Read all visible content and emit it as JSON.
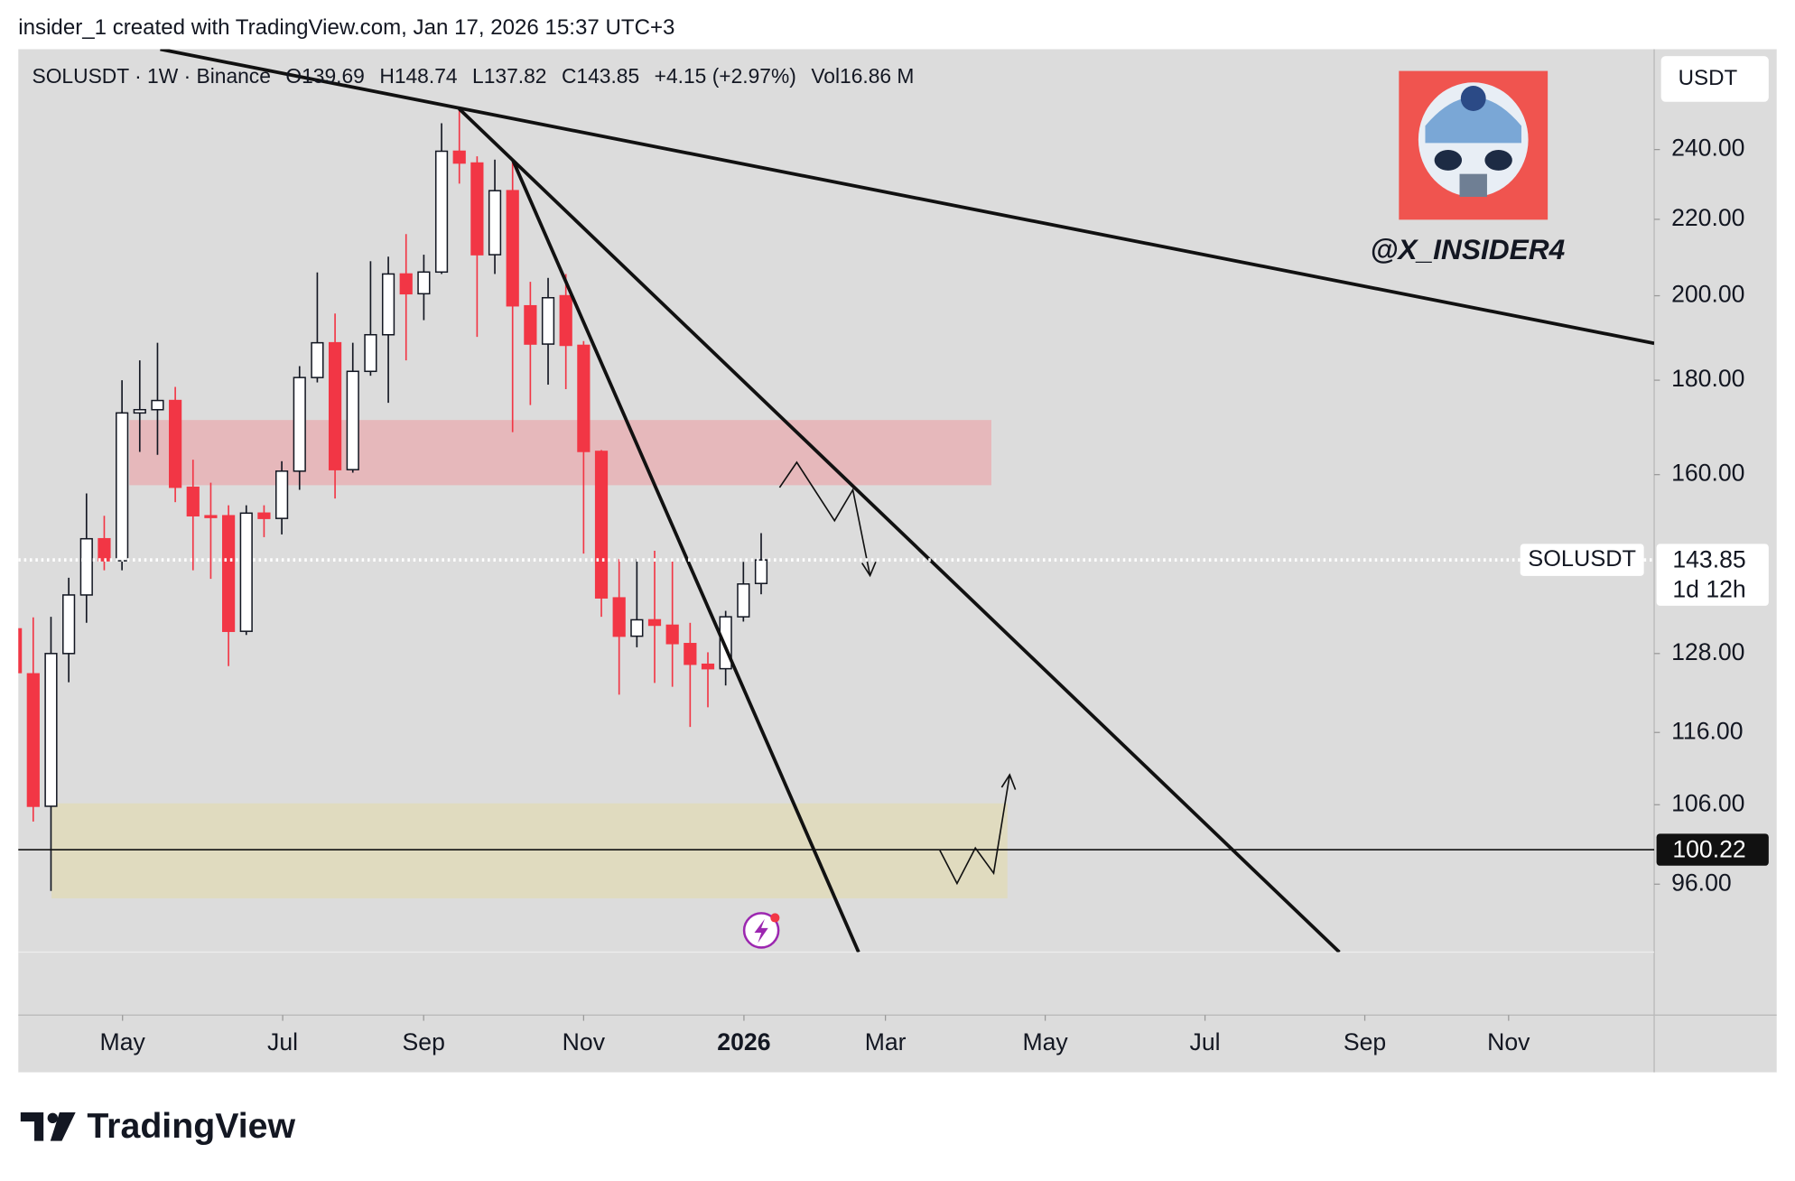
{
  "caption": "insider_1 created with TradingView.com, Jan 17, 2026 15:37 UTC+3",
  "chart_data": {
    "type": "candlestick",
    "title": "SOLUSDT · 1W · Binance",
    "header": {
      "open": "O139.69",
      "high": "H148.74",
      "low": "L137.82",
      "close": "C143.85",
      "change": "+4.15 (+2.97%)",
      "volume": "Vol16.86 M"
    },
    "y_axis_label": "USDT",
    "log_scale": true,
    "up_color": "#ffffff",
    "down_color": "#f23645",
    "open": [
      132,
      124.8,
      105.8,
      128,
      137.7,
      147.7,
      143.7,
      172.8,
      173.5,
      175.5,
      157.5,
      152,
      152,
      131.6,
      152.5,
      151.5,
      160.7,
      180.6,
      188.6,
      161,
      182,
      190.5,
      205.5,
      200.5,
      206,
      239.5,
      236,
      210.5,
      228,
      197.5,
      188.3,
      200,
      188,
      164.7,
      137.2,
      130.8,
      133.5,
      132.6,
      129.6,
      126.3,
      125.6,
      134,
      139.69
    ],
    "high": [
      135,
      133.9,
      134,
      140.7,
      156.3,
      152,
      180,
      184.5,
      188.6,
      178.5,
      163,
      158.4,
      154,
      154,
      154,
      162.7,
      183.2,
      205.9,
      195.6,
      188.6,
      208.8,
      210,
      216,
      210.5,
      248,
      252.8,
      238,
      237,
      237,
      203.5,
      204.5,
      205.5,
      189,
      165,
      144,
      144,
      145.5,
      144,
      133,
      128.2,
      135,
      143.5,
      148.74
    ],
    "low": [
      124,
      103.8,
      95.2,
      123.5,
      133,
      142,
      142,
      164.6,
      164,
      154.6,
      142,
      140.5,
      126,
      131,
      148,
      148.5,
      157,
      179.5,
      155.3,
      160.4,
      181,
      175,
      184.5,
      194,
      205.5,
      230,
      190,
      205.5,
      168.7,
      174.5,
      179,
      178,
      145,
      134,
      121.6,
      129,
      123.4,
      122.8,
      116.8,
      119.7,
      123,
      133.2,
      137.82
    ],
    "close": [
      125,
      105.8,
      128,
      137.7,
      147.7,
      143.7,
      172.8,
      173.5,
      175.5,
      157.5,
      152,
      151.8,
      131.6,
      152.5,
      151.5,
      160.7,
      180.6,
      188.6,
      161,
      182,
      190.5,
      205.5,
      200.5,
      206,
      239.5,
      236,
      210.5,
      228,
      197.5,
      188.3,
      199.5,
      188,
      164.7,
      137.2,
      130.8,
      133.5,
      132.6,
      129.6,
      126.3,
      125.6,
      134,
      139.6,
      143.85
    ],
    "xlim": [
      0.16,
      92.3
    ],
    "xticks": [
      {
        "value": 6.03,
        "label": "May"
      },
      {
        "value": 15.05,
        "label": "Jul"
      },
      {
        "value": 22.99,
        "label": "Sep"
      },
      {
        "value": 32.0,
        "label": "Nov"
      },
      {
        "value": 41.03,
        "label": "2026"
      },
      {
        "value": 49.0,
        "label": "Mar"
      },
      {
        "value": 58.0,
        "label": "May"
      },
      {
        "value": 67.0,
        "label": "Jul"
      },
      {
        "value": 76.0,
        "label": "Sep"
      },
      {
        "value": 84.1,
        "label": "Nov"
      }
    ],
    "ylim": [
      88.2,
      272
    ],
    "yticks": [
      {
        "value": 240,
        "label": "240.00"
      },
      {
        "value": 220,
        "label": "220.00"
      },
      {
        "value": 200,
        "label": "200.00"
      },
      {
        "value": 180,
        "label": "180.00"
      },
      {
        "value": 160,
        "label": "160.00"
      },
      {
        "value": 128,
        "label": "128.00"
      },
      {
        "value": 116,
        "label": "116.00"
      },
      {
        "value": 106,
        "label": "106.00"
      },
      {
        "value": 96,
        "label": "96.00"
      }
    ],
    "last_price": {
      "symbol": "SOLUSDT",
      "value": 143.85,
      "countdown": "1d 12h"
    },
    "level": {
      "value": 100.22
    },
    "watermark": "@X_INSIDER4"
  },
  "brand": "TradingView"
}
